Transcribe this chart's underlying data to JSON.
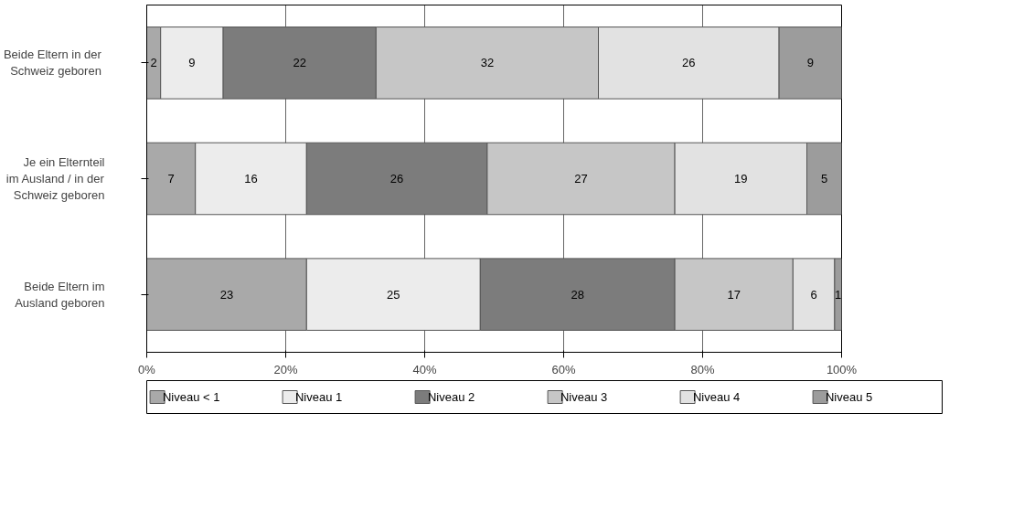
{
  "chart_data": {
    "type": "bar",
    "orientation": "horizontal",
    "stacked": true,
    "categories": [
      "Beide Eltern  in der\nSchweiz  geboren",
      "Je ein Elternteil\nim Ausland / in der\nSchweiz geboren",
      "Beide Eltern im\nAusland geboren"
    ],
    "series": [
      {
        "name": "Niveau < 1",
        "color": "#a9a9a9",
        "values": [
          2,
          7,
          23
        ]
      },
      {
        "name": "Niveau 1",
        "color": "#ececec",
        "values": [
          9,
          16,
          25
        ]
      },
      {
        "name": "Niveau 2",
        "color": "#7c7c7c",
        "values": [
          22,
          26,
          28
        ]
      },
      {
        "name": "Niveau 3",
        "color": "#c6c6c6",
        "values": [
          32,
          27,
          17
        ]
      },
      {
        "name": "Niveau 4",
        "color": "#e2e2e2",
        "values": [
          26,
          19,
          6
        ]
      },
      {
        "name": "Niveau 5",
        "color": "#9c9c9c",
        "values": [
          9,
          5,
          1
        ]
      }
    ],
    "xlim": [
      0,
      100
    ],
    "xticks": [
      {
        "value": 0,
        "label": "0%"
      },
      {
        "value": 20,
        "label": "20%"
      },
      {
        "value": 40,
        "label": "40%"
      },
      {
        "value": 60,
        "label": "60%"
      },
      {
        "value": 80,
        "label": "80%"
      },
      {
        "value": 100,
        "label": "100%"
      }
    ],
    "grid": "x",
    "legend": "bottom",
    "data_labels": true
  }
}
